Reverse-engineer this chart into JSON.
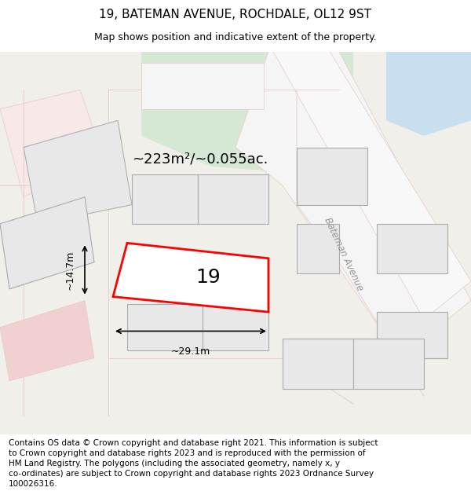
{
  "title_line1": "19, BATEMAN AVENUE, ROCHDALE, OL12 9ST",
  "title_line2": "Map shows position and indicative extent of the property.",
  "area_text": "~223m²/~0.055ac.",
  "number_label": "19",
  "dim_width": "~29.1m",
  "dim_height": "~14.7m",
  "road_label": "Bateman Avenue",
  "footer_lines": [
    "Contains OS data © Crown copyright and database right 2021. This information is subject",
    "to Crown copyright and database rights 2023 and is reproduced with the permission of",
    "HM Land Registry. The polygons (including the associated geometry, namely x, y",
    "co-ordinates) are subject to Crown copyright and database rights 2023 Ordnance Survey",
    "100026316."
  ],
  "map_bg": "#f0efea",
  "plot_fill": "#ffffff",
  "plot_stroke": "#ff0000",
  "land_green": "#d4e8d4",
  "land_blue": "#c8dff0",
  "road_outline": "#e8c8c8",
  "title_fontsize": 11,
  "subtitle_fontsize": 9,
  "footer_fontsize": 7.5
}
